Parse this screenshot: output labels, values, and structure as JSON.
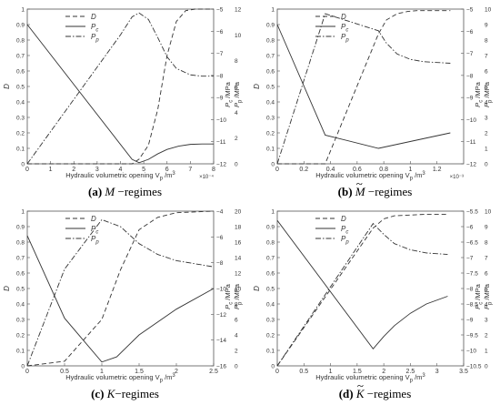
{
  "panels": [
    {
      "caption_tag": "(a)",
      "caption_sym": "M",
      "caption_tilde": false,
      "caption_suffix": " −regimes",
      "chart_data": {
        "type": "line",
        "xlabel": "Hydraulic volumetric opening V",
        "xlabel_sub": "p",
        "xlabel_unit": " /m",
        "xlabel_sup": "3",
        "ylabel_left": "D",
        "ylabel_right1": "P",
        "ylabel_right1_sub": "c",
        "ylabel_right1_unit": " /MPa",
        "ylabel_right2": "P",
        "ylabel_right2_sub": "p",
        "ylabel_right2_unit": " /MPa",
        "xlim": [
          0,
          8
        ],
        "x_ticks": [
          0,
          1,
          2,
          3,
          4,
          5,
          6,
          7,
          8
        ],
        "x_multiplier": "×10⁻⁴",
        "left_lim": [
          0,
          1
        ],
        "left_ticks": [
          0,
          0.1,
          0.2,
          0.3,
          0.4,
          0.5,
          0.6,
          0.7,
          0.8,
          0.9,
          1
        ],
        "r1_lim": [
          -12,
          -5
        ],
        "r1_ticks": [
          -12,
          -11,
          -10,
          -9,
          -8,
          -7,
          -6,
          -5
        ],
        "r2_lim": [
          0,
          12
        ],
        "r2_ticks": [
          0,
          2,
          4,
          6,
          8,
          10,
          12
        ],
        "legend": [
          "D",
          "P_c",
          "P_p"
        ],
        "series": [
          {
            "name": "D",
            "axis": "left",
            "style": "dashed",
            "x": [
              0,
              4.5,
              4.8,
              5.2,
              5.6,
              6.0,
              6.4,
              6.8,
              7.2,
              8.0
            ],
            "values": [
              0,
              0,
              0.03,
              0.12,
              0.35,
              0.7,
              0.92,
              0.99,
              1.0,
              1.0
            ]
          },
          {
            "name": "P_c",
            "axis": "r1",
            "style": "solid",
            "x": [
              0,
              4.5,
              4.8,
              5.2,
              5.6,
              6.0,
              6.5,
              7.0,
              7.5,
              8.0
            ],
            "values": [
              -5.7,
              -11.8,
              -11.95,
              -11.8,
              -11.55,
              -11.35,
              -11.2,
              -11.12,
              -11.1,
              -11.1
            ]
          },
          {
            "name": "P_p",
            "axis": "r2",
            "style": "dashdot",
            "x": [
              0,
              1,
              2,
              3,
              4,
              4.5,
              4.8,
              5.2,
              5.6,
              6.0,
              6.4,
              7.0,
              7.5,
              8.0
            ],
            "values": [
              0,
              2.5,
              5,
              7.5,
              10,
              11.4,
              11.7,
              11.2,
              9.8,
              8.3,
              7.4,
              6.9,
              6.8,
              6.8
            ]
          }
        ]
      }
    },
    {
      "caption_tag": "(b)",
      "caption_sym": "M",
      "caption_tilde": true,
      "caption_suffix": " −regimes",
      "chart_data": {
        "type": "line",
        "xlabel": "Hydraulic volumetric opening V",
        "xlabel_sub": "p",
        "xlabel_unit": " /m",
        "xlabel_sup": "3",
        "ylabel_left": "D",
        "ylabel_right1": "P",
        "ylabel_right1_sub": "c",
        "ylabel_right1_unit": " /MPa",
        "ylabel_right2": "P",
        "ylabel_right2_sub": "p",
        "ylabel_right2_unit": " /MPa",
        "xlim": [
          0,
          1.4
        ],
        "x_ticks": [
          0,
          0.2,
          0.4,
          0.6,
          0.8,
          1,
          1.2
        ],
        "x_multiplier": "×10⁻³",
        "left_lim": [
          0,
          1
        ],
        "left_ticks": [
          0,
          0.1,
          0.2,
          0.3,
          0.4,
          0.5,
          0.6,
          0.7,
          0.8,
          0.9,
          1
        ],
        "r1_lim": [
          -12,
          -5
        ],
        "r1_ticks": [
          -12,
          -11,
          -10,
          -9,
          -8,
          -7,
          -6,
          -5
        ],
        "r2_lim": [
          0,
          10
        ],
        "r2_ticks": [
          0,
          1,
          2,
          3,
          4,
          5,
          6,
          7,
          8,
          9,
          10
        ],
        "legend": [
          "D",
          "P_c",
          "P_p"
        ],
        "series": [
          {
            "name": "D",
            "axis": "left",
            "style": "dashed",
            "x": [
              0,
              0.36,
              0.76,
              0.82,
              0.9,
              0.98,
              1.05,
              1.3
            ],
            "values": [
              0,
              0,
              0.84,
              0.93,
              0.97,
              0.985,
              0.99,
              0.99
            ]
          },
          {
            "name": "P_c",
            "axis": "r1",
            "style": "solid",
            "x": [
              0,
              0.36,
              0.76,
              1.3
            ],
            "values": [
              -5.7,
              -10.7,
              -11.3,
              -10.6
            ]
          },
          {
            "name": "P_p",
            "axis": "r2",
            "style": "dashdot",
            "x": [
              0,
              0.36,
              0.76,
              0.82,
              0.9,
              1.0,
              1.1,
              1.3
            ],
            "values": [
              0,
              9.7,
              8.6,
              7.8,
              7.1,
              6.75,
              6.6,
              6.5
            ]
          }
        ]
      }
    },
    {
      "caption_tag": "(c)",
      "caption_sym": "K",
      "caption_tilde": false,
      "caption_suffix": "−regimes",
      "chart_data": {
        "type": "line",
        "xlabel": "Hydraulic volumetric opening V",
        "xlabel_sub": "p",
        "xlabel_unit": " /m",
        "xlabel_sup": "3",
        "ylabel_left": "D",
        "ylabel_right1": "P",
        "ylabel_right1_sub": "c",
        "ylabel_right1_unit": " /MPa",
        "ylabel_right2": "P",
        "ylabel_right2_sub": "p",
        "ylabel_right2_unit": " /MPa",
        "xlim": [
          0,
          2.5
        ],
        "x_ticks": [
          0,
          0.5,
          1,
          1.5,
          2,
          2.5
        ],
        "x_multiplier": "",
        "left_lim": [
          0,
          1
        ],
        "left_ticks": [
          0,
          0.1,
          0.2,
          0.3,
          0.4,
          0.5,
          0.6,
          0.7,
          0.8,
          0.9,
          1
        ],
        "r1_lim": [
          -16,
          -4
        ],
        "r1_ticks": [
          -16,
          -14,
          -12,
          -10,
          -8,
          -6,
          -4
        ],
        "r2_lim": [
          0,
          20
        ],
        "r2_ticks": [
          0,
          2,
          4,
          6,
          8,
          10,
          12,
          14,
          16,
          18,
          20
        ],
        "legend": [
          "D",
          "P_c",
          "P_p"
        ],
        "series": [
          {
            "name": "D",
            "axis": "left",
            "style": "dashed",
            "x": [
              0,
              0.5,
              1.0,
              1.25,
              1.5,
              1.75,
              2.0,
              2.5
            ],
            "values": [
              0,
              0.03,
              0.3,
              0.62,
              0.88,
              0.96,
              0.99,
              1.0
            ]
          },
          {
            "name": "P_c",
            "axis": "r1",
            "style": "solid",
            "x": [
              0,
              0.5,
              1.0,
              1.2,
              1.5,
              2.0,
              2.5
            ],
            "values": [
              -5.9,
              -12.3,
              -15.7,
              -15.3,
              -13.6,
              -11.6,
              -10.0
            ]
          },
          {
            "name": "P_p",
            "axis": "r2",
            "style": "dashdot",
            "x": [
              0,
              0.5,
              1.0,
              1.25,
              1.5,
              1.75,
              2.0,
              2.5
            ],
            "values": [
              0,
              12.5,
              18.9,
              18.0,
              15.8,
              14.4,
              13.6,
              12.8
            ]
          }
        ]
      }
    },
    {
      "caption_tag": "(d)",
      "caption_sym": "K",
      "caption_tilde": true,
      "caption_suffix": " −regimes",
      "chart_data": {
        "type": "line",
        "xlabel": "Hydraulic volumetric opening V",
        "xlabel_sub": "p",
        "xlabel_unit": " /m",
        "xlabel_sup": "3",
        "ylabel_left": "D",
        "ylabel_right1": "P",
        "ylabel_right1_sub": "c",
        "ylabel_right1_unit": " /MPa",
        "ylabel_right2": "P",
        "ylabel_right2_sub": "p",
        "ylabel_right2_unit": " /MPa",
        "xlim": [
          0,
          3.5
        ],
        "x_ticks": [
          0,
          0.5,
          1,
          1.5,
          2,
          2.5,
          3,
          3.5
        ],
        "x_multiplier": "",
        "left_lim": [
          0,
          1
        ],
        "left_ticks": [
          0,
          0.1,
          0.2,
          0.3,
          0.4,
          0.5,
          0.6,
          0.7,
          0.8,
          0.9,
          1
        ],
        "r1_lim": [
          -10.5,
          -5.5
        ],
        "r1_ticks": [
          -10.5,
          -10,
          -9.5,
          -9,
          -8.5,
          -8,
          -7.5,
          -7,
          -6.5,
          -6,
          -5.5
        ],
        "r2_lim": [
          0,
          10
        ],
        "r2_ticks": [
          0,
          1,
          2,
          3,
          4,
          5,
          6,
          7,
          8,
          9,
          10
        ],
        "legend": [
          "D",
          "P_c",
          "P_p"
        ],
        "series": [
          {
            "name": "D",
            "axis": "left",
            "style": "dashed",
            "x": [
              0,
              1.8,
              2.0,
              2.2,
              2.5,
              2.8,
              3.2
            ],
            "values": [
              0,
              0.89,
              0.95,
              0.97,
              0.975,
              0.98,
              0.98
            ]
          },
          {
            "name": "P_c",
            "axis": "r1",
            "style": "solid",
            "x": [
              0,
              1.8,
              2.0,
              2.2,
              2.5,
              2.8,
              3.2
            ],
            "values": [
              -5.8,
              -9.95,
              -9.55,
              -9.2,
              -8.8,
              -8.5,
              -8.25
            ]
          },
          {
            "name": "P_p",
            "axis": "r2",
            "style": "dashdot",
            "x": [
              0,
              1.8,
              2.0,
              2.2,
              2.5,
              2.8,
              3.2
            ],
            "values": [
              0,
              9.2,
              8.5,
              7.9,
              7.5,
              7.3,
              7.2
            ]
          }
        ]
      }
    }
  ]
}
